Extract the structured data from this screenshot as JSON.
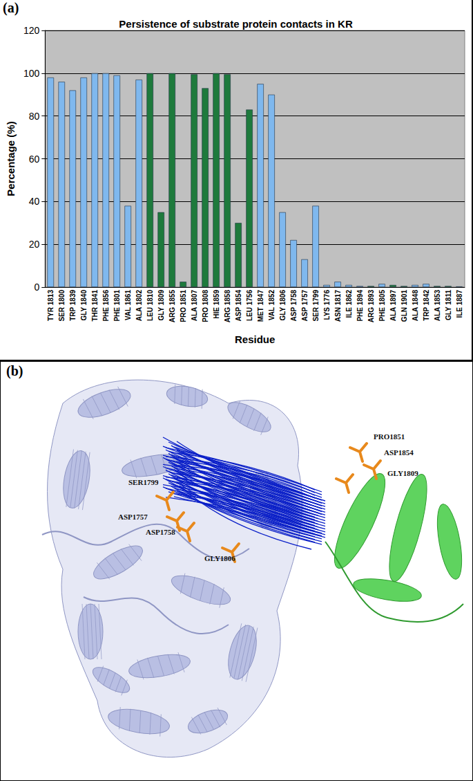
{
  "panel_labels": [
    "(a)",
    "(b)"
  ],
  "chart_data": {
    "type": "bar",
    "title": "Persistence of substrate protein contacts in KR",
    "x_label": "Residue",
    "y_label": "Percentage (%)",
    "categories": [
      "TYR 1813",
      "SER 1800",
      "TRP 1839",
      "GLY 1840",
      "THR 1841",
      "PHE 1856",
      "PHE 1801",
      "VAL 1861",
      "ALA 1802",
      "LEU 1810",
      "GLY 1809",
      "ARG 1855",
      "PRO 1851",
      "ALA 1807",
      "PRO 1808",
      "HIE 1859",
      "ARG 1858",
      "ASP 1854",
      "LEU 1756",
      "MET 1847",
      "VAL 1852",
      "GLY 1806",
      "ASP 1758",
      "ASP 1757",
      "SER 1799",
      "LYS 1776",
      "ASN 1817",
      "ILE 1862",
      "PHE 1894",
      "ARG 1893",
      "PHE 1805",
      "ALA 1897",
      "GLN 1901",
      "ALA 1848",
      "TRP 1842",
      "ALA 1853",
      "GLY 1811",
      "ILE 1887"
    ],
    "values": [
      98,
      96,
      92,
      98,
      100,
      100,
      99,
      38,
      97,
      100,
      35,
      100,
      2.5,
      99.5,
      93,
      100,
      99.5,
      30,
      83,
      95,
      90,
      35,
      22,
      13,
      38,
      1,
      2.5,
      1,
      0.5,
      0.5,
      1.5,
      1,
      0.5,
      1,
      1.5,
      0.5,
      0.5,
      0.3
    ],
    "colors": [
      "#7fb8ee",
      "#7fb8ee",
      "#7fb8ee",
      "#7fb8ee",
      "#7fb8ee",
      "#7fb8ee",
      "#7fb8ee",
      "#7fb8ee",
      "#7fb8ee",
      "#1e7a3c",
      "#1e7a3c",
      "#1e7a3c",
      "#1e7a3c",
      "#1e7a3c",
      "#1e7a3c",
      "#1e7a3c",
      "#1e7a3c",
      "#1e7a3c",
      "#1e7a3c",
      "#7fb8ee",
      "#7fb8ee",
      "#7fb8ee",
      "#7fb8ee",
      "#7fb8ee",
      "#7fb8ee",
      "#7fb8ee",
      "#7fb8ee",
      "#7fb8ee",
      "#7fb8ee",
      "#1e7a3c",
      "#7fb8ee",
      "#1e7a3c",
      "#1e7a3c",
      "#7fb8ee",
      "#7fb8ee",
      "#1e7a3c",
      "#1e7a3c",
      "#7fb8ee"
    ],
    "ylim": [
      0,
      120
    ],
    "yticks": [
      0,
      20,
      40,
      60,
      80,
      100,
      120
    ],
    "grid": true
  },
  "structure_labels": [
    "PRO1851",
    "ASP1854",
    "GLY1809",
    "SER1799",
    "ASP1757",
    "ASP1758",
    "GLY1806"
  ]
}
